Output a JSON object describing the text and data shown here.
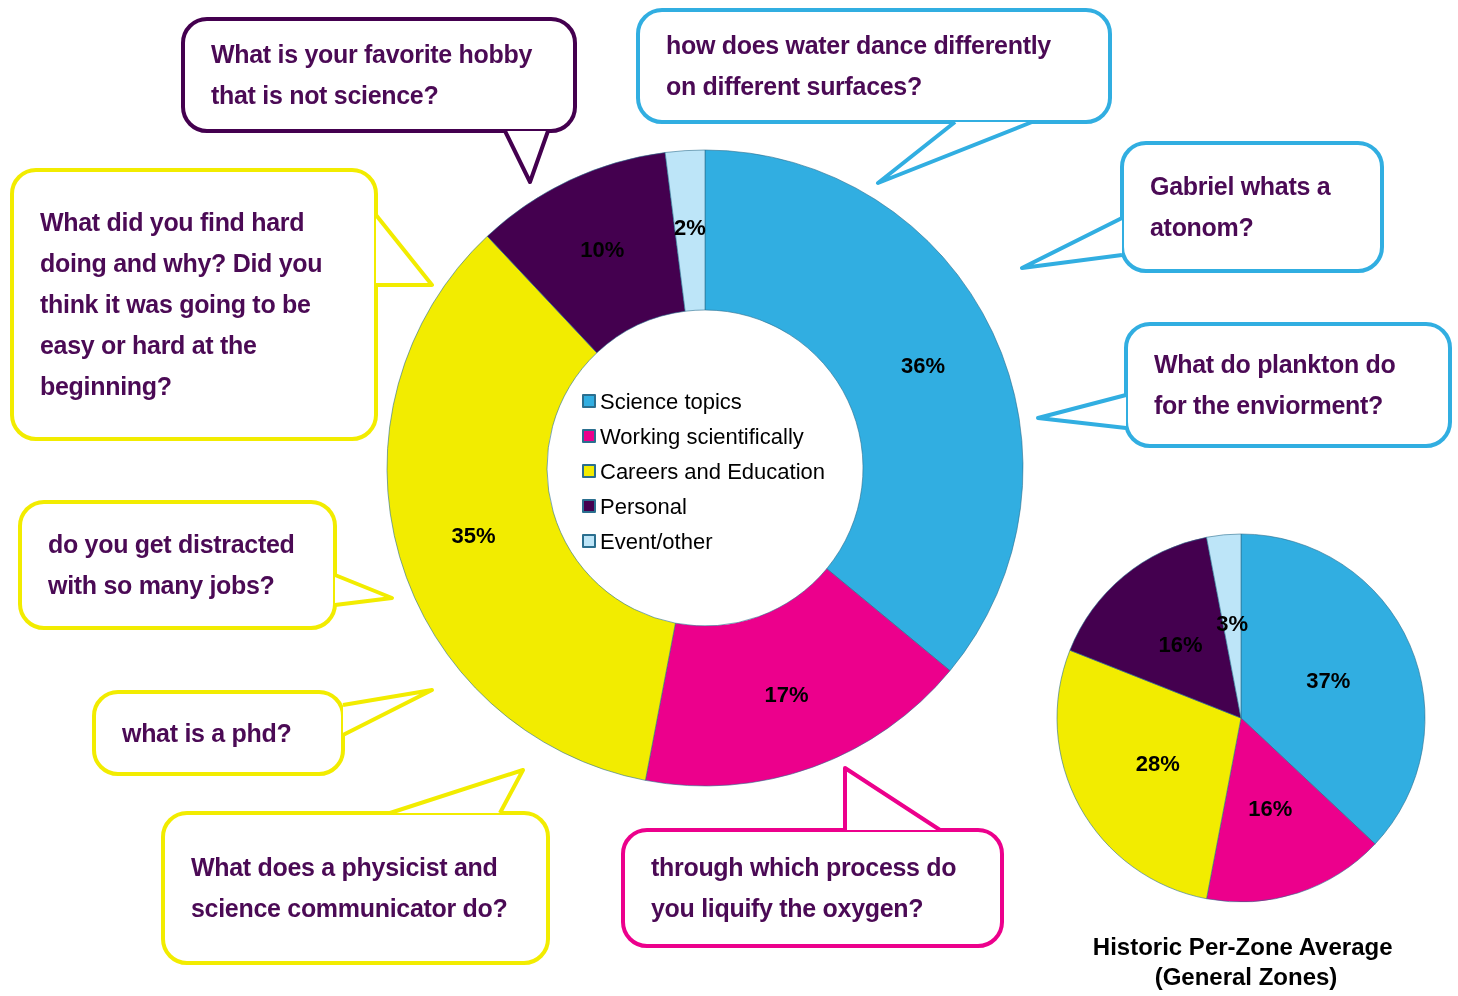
{
  "chart_data": [
    {
      "type": "donut",
      "categories": [
        "Science topics",
        "Working scientifically",
        "Careers and Education",
        "Personal",
        "Event/other"
      ],
      "values": [
        36,
        17,
        35,
        10,
        2
      ],
      "value_labels": [
        "36%",
        "17%",
        "35%",
        "10%",
        "2%"
      ],
      "colors": [
        "#31aee1",
        "#ec008c",
        "#f2ec00",
        "#44004f",
        "#bde5f8"
      ],
      "legend": "center",
      "annotations": [
        {
          "text": "What is your favorite hobby that is not science?",
          "x": "Personal"
        },
        {
          "text": "how does water dance differently on different surfaces?",
          "x": "Science topics"
        },
        {
          "text": "Gabriel whats a atonom?",
          "x": "Science topics"
        },
        {
          "text": "What do plankton do for the enviorment?",
          "x": "Science topics"
        },
        {
          "text": "What did you find hard doing and why? Did you think it was going to be easy or hard at the beginning?",
          "x": "Careers and Education"
        },
        {
          "text": "do you get distracted with so many jobs?",
          "x": "Careers and Education"
        },
        {
          "text": "what is a phd?",
          "x": "Careers and Education"
        },
        {
          "text": "What does a physicist and science communicator do?",
          "x": "Careers and Education"
        },
        {
          "text": "through which process do you liquify the oxygen?",
          "x": "Working scientifically"
        }
      ]
    },
    {
      "type": "pie",
      "title": "Historic Per-Zone Average (General Zones)",
      "categories": [
        null,
        null,
        null,
        null,
        null
      ],
      "values": [
        37,
        16,
        28,
        16,
        3
      ],
      "value_labels": [
        "37%",
        "16%",
        "28%",
        "16%",
        "3%"
      ],
      "colors": [
        "#31aee1",
        "#ec008c",
        "#f2ec00",
        "#44004f",
        "#bde5f8"
      ],
      "legend": false
    }
  ]
}
